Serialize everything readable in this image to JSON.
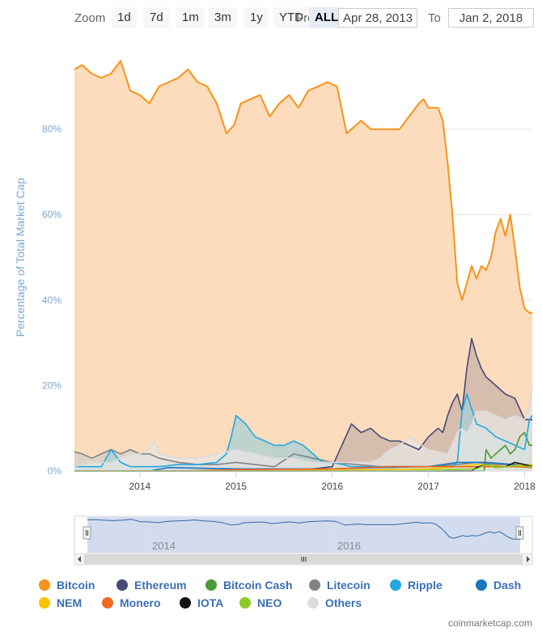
{
  "toolbar": {
    "zoom_label": "Zoom",
    "buttons": [
      "1d",
      "7d",
      "1m",
      "3m",
      "1y",
      "YTD",
      "ALL"
    ],
    "active_button": "ALL",
    "from_label": "From",
    "from_value": "Apr 28, 2013",
    "to_label": "To",
    "to_value": "Jan 2, 2018"
  },
  "navigator": {
    "ticks": [
      "2014",
      "2016"
    ]
  },
  "credit": "coinmarketcap.com",
  "chart_data": {
    "type": "area",
    "ylabel": "Percentage of Total Market Cap",
    "yticks": [
      "0%",
      "20%",
      "40%",
      "60%",
      "80%"
    ],
    "ylim": [
      0,
      100
    ],
    "xlim": [
      2013.32,
      2018.08
    ],
    "xticks": [
      "2014",
      "2015",
      "2016",
      "2017",
      "2018"
    ],
    "legend_position": "bottom",
    "series": [
      {
        "name": "Bitcoin",
        "color": "#f7931a",
        "fill": "#fcdcbc",
        "x": [
          2013.32,
          2013.4,
          2013.5,
          2013.6,
          2013.7,
          2013.8,
          2013.9,
          2014.0,
          2014.1,
          2014.2,
          2014.3,
          2014.4,
          2014.5,
          2014.6,
          2014.7,
          2014.8,
          2014.9,
          2014.98,
          2015.05,
          2015.15,
          2015.25,
          2015.35,
          2015.45,
          2015.55,
          2015.65,
          2015.75,
          2015.85,
          2015.95,
          2016.05,
          2016.15,
          2016.2,
          2016.3,
          2016.4,
          2016.5,
          2016.6,
          2016.7,
          2016.8,
          2016.9,
          2016.95,
          2017.0,
          2017.1,
          2017.15,
          2017.2,
          2017.25,
          2017.3,
          2017.35,
          2017.4,
          2017.45,
          2017.5,
          2017.55,
          2017.6,
          2017.65,
          2017.7,
          2017.75,
          2017.8,
          2017.85,
          2017.9,
          2017.95,
          2018.0,
          2018.05,
          2018.08
        ],
        "values": [
          94,
          95,
          93,
          92,
          93,
          96,
          89,
          88,
          86,
          90,
          91,
          92,
          94,
          91,
          90,
          86,
          79,
          81,
          86,
          87,
          88,
          83,
          86,
          88,
          85,
          89,
          90,
          91,
          90,
          79,
          80,
          82,
          80,
          80,
          80,
          80,
          83,
          86,
          87,
          85,
          85,
          82,
          72,
          60,
          44,
          40,
          44,
          48,
          45,
          48,
          47,
          50,
          56,
          59,
          55,
          60,
          52,
          43,
          38,
          37,
          37
        ]
      },
      {
        "name": "Ethereum",
        "color": "#454a75",
        "fill": "#c9b3a8",
        "x": [
          2013.32,
          2015.6,
          2015.8,
          2016.0,
          2016.1,
          2016.2,
          2016.3,
          2016.4,
          2016.5,
          2016.6,
          2016.7,
          2016.8,
          2016.9,
          2017.0,
          2017.1,
          2017.15,
          2017.2,
          2017.25,
          2017.3,
          2017.35,
          2017.4,
          2017.45,
          2017.5,
          2017.55,
          2017.6,
          2017.7,
          2017.8,
          2017.9,
          2018.0,
          2018.08
        ],
        "values": [
          0,
          0,
          0.5,
          1,
          6,
          11,
          9,
          10,
          8,
          7,
          7,
          6,
          5,
          8,
          10,
          9,
          13,
          16,
          18,
          14,
          24,
          31,
          27,
          24,
          22,
          20,
          18,
          17,
          12,
          12
        ]
      },
      {
        "name": "Bitcoin Cash",
        "color": "#4a9a35",
        "fill": "#a9c9a0",
        "x": [
          2013.32,
          2017.58,
          2017.6,
          2017.65,
          2017.7,
          2017.75,
          2017.8,
          2017.85,
          2017.9,
          2017.95,
          2018.0,
          2018.05,
          2018.08
        ],
        "values": [
          0,
          0,
          5,
          3,
          4,
          5,
          6,
          4,
          5,
          8,
          9,
          6,
          6
        ]
      },
      {
        "name": "Litecoin",
        "color": "#838383",
        "fill": "#d4cfc9",
        "x": [
          2013.32,
          2013.4,
          2013.5,
          2013.6,
          2013.7,
          2013.8,
          2013.9,
          2014.0,
          2014.1,
          2014.2,
          2014.4,
          2014.6,
          2014.8,
          2015.0,
          2015.2,
          2015.4,
          2015.6,
          2015.8,
          2016.0,
          2016.5,
          2017.0,
          2017.3,
          2017.5,
          2017.7,
          2017.9,
          2018.08
        ],
        "values": [
          4.5,
          4,
          3,
          4,
          5,
          4,
          5,
          4,
          4,
          3,
          2,
          1.5,
          1.5,
          2,
          1.5,
          1,
          4,
          3,
          2,
          1,
          1,
          1.5,
          2,
          1.5,
          1.5,
          1.5
        ]
      },
      {
        "name": "Ripple",
        "color": "#23a8e0",
        "fill": "#a9cfd4",
        "x": [
          2013.32,
          2013.6,
          2013.7,
          2013.8,
          2013.9,
          2014.0,
          2014.2,
          2014.4,
          2014.6,
          2014.8,
          2014.9,
          2014.95,
          2015.0,
          2015.05,
          2015.1,
          2015.2,
          2015.3,
          2015.4,
          2015.5,
          2015.6,
          2015.7,
          2015.8,
          2015.9,
          2016.0,
          2016.2,
          2016.4,
          2016.6,
          2016.8,
          2017.0,
          2017.1,
          2017.2,
          2017.25,
          2017.3,
          2017.35,
          2017.4,
          2017.5,
          2017.6,
          2017.7,
          2017.8,
          2017.9,
          2018.0,
          2018.05,
          2018.08
        ],
        "values": [
          1,
          1,
          5,
          2,
          1,
          1,
          1,
          1.5,
          1.5,
          2,
          4,
          8,
          13,
          12,
          11,
          8,
          7,
          6,
          6,
          7,
          6,
          4,
          2,
          2,
          1,
          1,
          1,
          1,
          1,
          1,
          1,
          1,
          2,
          14,
          18,
          11,
          10,
          8,
          7,
          6,
          5,
          12,
          13
        ]
      },
      {
        "name": "Dash",
        "color": "#1c75bc",
        "fill": "#a3c2dc",
        "x": [
          2013.32,
          2014.1,
          2014.3,
          2015.0,
          2016.0,
          2016.5,
          2017.0,
          2017.3,
          2017.6,
          2017.9,
          2018.08
        ],
        "values": [
          0,
          0,
          0.8,
          0.5,
          0.5,
          0.8,
          1,
          2,
          2,
          1.5,
          1.2
        ]
      },
      {
        "name": "NEM",
        "color": "#f9c300",
        "fill": "#f5df9e",
        "x": [
          2013.32,
          2015.3,
          2016.0,
          2016.5,
          2017.0,
          2017.3,
          2017.5,
          2017.8,
          2018.0,
          2018.08
        ],
        "values": [
          0,
          0,
          0.2,
          0.3,
          0.5,
          1,
          1.5,
          1,
          1.5,
          1.5
        ]
      },
      {
        "name": "Monero",
        "color": "#f26822",
        "fill": "#f6c0a2",
        "x": [
          2013.32,
          2014.4,
          2015.0,
          2016.0,
          2016.6,
          2017.0,
          2017.3,
          2017.6,
          2017.9,
          2018.08
        ],
        "values": [
          0,
          0,
          0.3,
          0.5,
          1,
          1,
          1,
          1,
          1,
          0.8
        ]
      },
      {
        "name": "IOTA",
        "color": "#111111",
        "fill": "#b8b8b8",
        "x": [
          2013.32,
          2017.45,
          2017.5,
          2017.6,
          2017.7,
          2017.8,
          2017.9,
          2018.0,
          2018.08
        ],
        "values": [
          0,
          0,
          0.8,
          1.5,
          0.8,
          1,
          2,
          1.5,
          1
        ]
      },
      {
        "name": "NEO",
        "color": "#8bcb25",
        "fill": "#cfe8a6",
        "x": [
          2013.32,
          2016.6,
          2017.0,
          2017.5,
          2017.6,
          2017.7,
          2017.8,
          2017.9,
          2018.08
        ],
        "values": [
          0,
          0,
          0.2,
          0.5,
          1.5,
          0.8,
          1,
          1.2,
          1
        ]
      },
      {
        "name": "Others",
        "color": "#dadada",
        "fill": "#e8e6e3",
        "x": [
          2013.32,
          2013.5,
          2013.7,
          2013.8,
          2013.9,
          2014.0,
          2014.1,
          2014.15,
          2014.2,
          2014.4,
          2014.6,
          2014.8,
          2015.0,
          2015.2,
          2015.4,
          2015.6,
          2015.8,
          2016.0,
          2016.2,
          2016.4,
          2016.5,
          2016.6,
          2016.7,
          2016.8,
          2017.0,
          2017.2,
          2017.3,
          2017.35,
          2017.4,
          2017.45,
          2017.5,
          2017.6,
          2017.7,
          2017.8,
          2017.9,
          2018.0,
          2018.05,
          2018.08
        ],
        "values": [
          1,
          2,
          2,
          3,
          4,
          4,
          5,
          7,
          4,
          3,
          3,
          4,
          5,
          4,
          3,
          3,
          2,
          2,
          2,
          2,
          3,
          5,
          6,
          8,
          5,
          4,
          9,
          10,
          9,
          11,
          14,
          14,
          13,
          12,
          13,
          12,
          15,
          20
        ]
      }
    ]
  }
}
